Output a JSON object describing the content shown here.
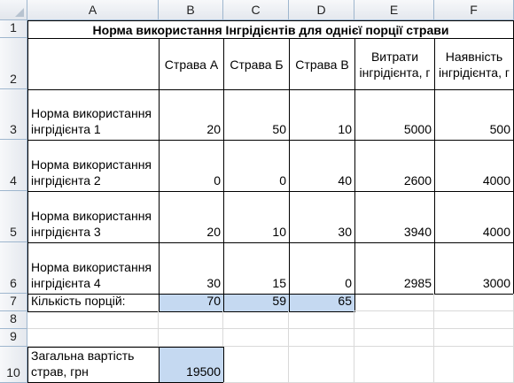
{
  "columns": [
    "A",
    "B",
    "C",
    "D",
    "E",
    "F"
  ],
  "rows": [
    "1",
    "2",
    "3",
    "4",
    "5",
    "6",
    "7",
    "8",
    "9",
    "10"
  ],
  "title": "Норма використання Інгрідієнтів для однієї порції страви",
  "headers": {
    "dish_a": "Страва А",
    "dish_b": "Страва Б",
    "dish_c": "Страва В",
    "cost": "Витрати інгрідієнта, г",
    "availability": "Наявність інгрідієнта, г"
  },
  "ingredients": [
    {
      "label": "Норма використання інгрідієнта 1",
      "a": "20",
      "b": "50",
      "c": "10",
      "cost": "5000",
      "avail": "500"
    },
    {
      "label": "Норма використання інгрідієнта 2",
      "a": "0",
      "b": "0",
      "c": "40",
      "cost": "2600",
      "avail": "4000"
    },
    {
      "label": "Норма використання інгрідієнта 3",
      "a": "20",
      "b": "10",
      "c": "30",
      "cost": "3940",
      "avail": "4000"
    },
    {
      "label": "Норма використання інгрідієнта 4",
      "a": "30",
      "b": "15",
      "c": "0",
      "cost": "2985",
      "avail": "3000"
    }
  ],
  "portions": {
    "label": "Кількість порцій:",
    "a": "70",
    "b": "59",
    "c": "65"
  },
  "total": {
    "label": "Загальна вартість страв, грн",
    "value": "19500"
  },
  "colors": {
    "input_fill": "#c5d9f1",
    "header_border": "#9eb6ce",
    "grid": "#d9d9d9"
  }
}
